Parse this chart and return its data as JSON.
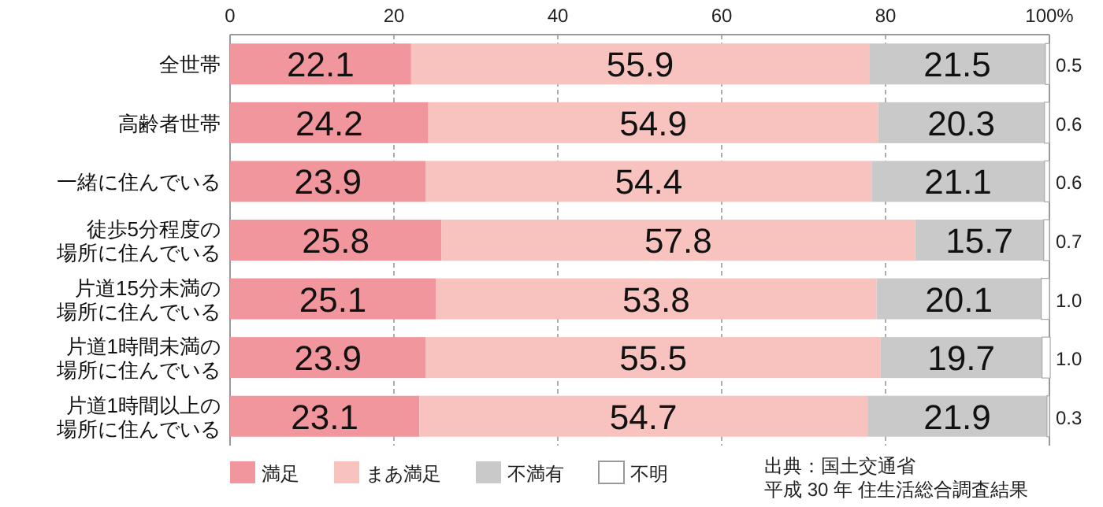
{
  "chart_data": {
    "type": "bar",
    "orientation": "horizontal",
    "stacked": true,
    "data_labels": true,
    "grid": "x",
    "legend": "bottom",
    "categories": [
      "全世帯",
      "高齢者世帯",
      "一緒に住んでいる",
      "徒歩5分程度の場所に住んでいる",
      "片道15分未満の場所に住んでいる",
      "片道1時間未満の場所に住んでいる",
      "片道1時間以上の場所に住んでいる"
    ],
    "series": [
      {
        "name": "満足",
        "color": "#f0969c",
        "values": [
          22.1,
          24.2,
          23.9,
          25.8,
          25.1,
          23.9,
          23.1
        ]
      },
      {
        "name": "まあ満足",
        "color": "#f8c2be",
        "values": [
          55.9,
          54.9,
          54.4,
          57.8,
          53.8,
          55.5,
          54.7
        ]
      },
      {
        "name": "不満有",
        "color": "#c9c9c9",
        "values": [
          21.5,
          20.3,
          21.1,
          15.7,
          20.1,
          19.7,
          21.9
        ]
      },
      {
        "name": "不明",
        "color": "#ffffff",
        "values": [
          0.5,
          0.6,
          0.6,
          0.7,
          1.0,
          1.0,
          0.3
        ],
        "value_labels": [
          "0.5",
          "0.6",
          "0.6",
          "0.7",
          "1.0",
          "1.0",
          "0.3"
        ]
      }
    ],
    "xlim": [
      0,
      100
    ],
    "xticks": [
      0,
      20,
      40,
      60,
      80,
      {
        "value": 100,
        "label": "100%"
      }
    ],
    "annotations": [
      "出典：国土交通省",
      "平成 30 年 住生活総合調査結果"
    ]
  }
}
